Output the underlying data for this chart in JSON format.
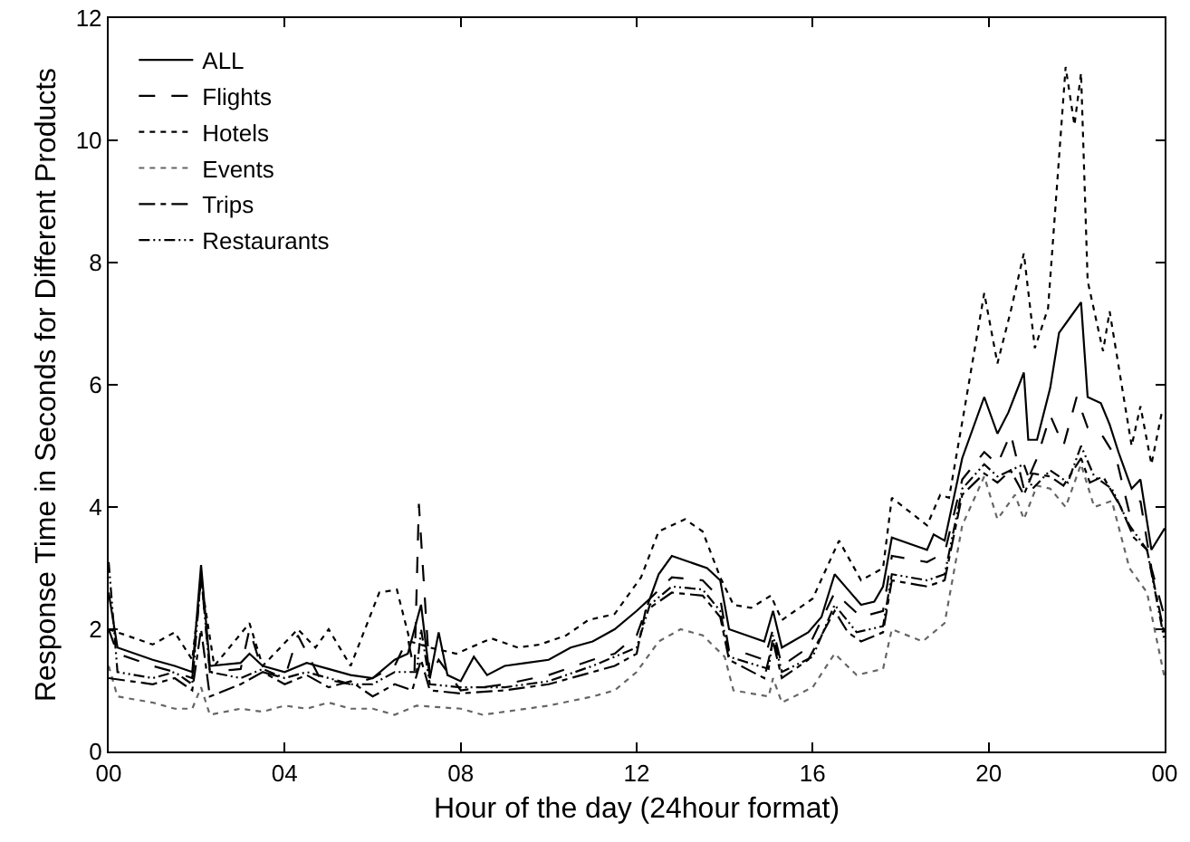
{
  "chart_data": {
    "type": "line",
    "xlabel": "Hour of the day (24hour format)",
    "ylabel": "Response Time in Seconds for Different Products",
    "xlim": [
      0,
      24
    ],
    "xticks": [
      {
        "value": 0,
        "label": "00"
      },
      {
        "value": 4,
        "label": "04"
      },
      {
        "value": 8,
        "label": "08"
      },
      12,
      16,
      20,
      {
        "value": 24,
        "label": "00"
      }
    ],
    "ylim": [
      0,
      12
    ],
    "yticks": [
      0,
      2,
      4,
      6,
      8,
      10,
      12
    ],
    "grid": false,
    "legend": "top left",
    "marker": "none",
    "series": [
      {
        "name": "ALL",
        "color": "#000000",
        "line_style": "solid",
        "x": [
          0,
          0.2,
          1,
          1.5,
          1.9,
          2.1,
          2.3,
          3,
          3.2,
          3.5,
          4,
          4.5,
          5,
          5.5,
          6,
          6.5,
          6.8,
          7.1,
          7.3,
          7.5,
          7.7,
          8,
          8.3,
          8.6,
          9,
          9.5,
          10,
          10.5,
          11,
          11.5,
          12,
          12.3,
          12.5,
          12.8,
          13.2,
          13.6,
          13.9,
          14.1,
          14.5,
          14.9,
          15.1,
          15.3,
          15.9,
          16.2,
          16.5,
          16.8,
          17.1,
          17.4,
          17.6,
          17.8,
          18.6,
          18.75,
          19,
          19.4,
          19.9,
          20.2,
          20.45,
          20.8,
          20.9,
          21.1,
          21.4,
          21.6,
          21.85,
          22.1,
          22.25,
          22.55,
          22.75,
          22.95,
          23.25,
          23.45,
          23.7,
          24
        ],
        "values": [
          2.6,
          1.7,
          1.5,
          1.4,
          1.3,
          3.05,
          1.4,
          1.45,
          1.6,
          1.4,
          1.3,
          1.45,
          1.35,
          1.25,
          1.2,
          1.5,
          1.6,
          2.4,
          1.2,
          1.95,
          1.25,
          1.15,
          1.55,
          1.25,
          1.4,
          1.45,
          1.5,
          1.7,
          1.8,
          2.0,
          2.3,
          2.5,
          2.9,
          3.2,
          3.1,
          3.0,
          2.8,
          2.0,
          1.9,
          1.8,
          2.3,
          1.7,
          1.95,
          2.2,
          2.9,
          2.65,
          2.4,
          2.45,
          2.7,
          3.5,
          3.3,
          3.55,
          3.45,
          4.8,
          5.8,
          5.2,
          5.55,
          6.2,
          5.1,
          5.1,
          5.95,
          6.85,
          7.1,
          7.35,
          5.8,
          5.7,
          5.35,
          4.9,
          4.3,
          4.45,
          3.3,
          3.65
        ]
      },
      {
        "name": "Flights",
        "color": "#000000",
        "line_style": "dashed",
        "x": [
          0,
          0.2,
          1,
          1.5,
          1.9,
          2.1,
          2.3,
          3,
          3.2,
          3.5,
          4,
          4.3,
          4.8,
          5.5,
          6,
          6.5,
          6.8,
          6.95,
          7.05,
          7.3,
          7.5,
          8,
          9,
          10,
          11,
          11.5,
          12,
          12.3,
          12.8,
          13.5,
          13.9,
          14.1,
          14.5,
          14.9,
          15.1,
          15.3,
          15.9,
          16.5,
          17.1,
          17.6,
          17.8,
          18.6,
          19,
          19.4,
          19.9,
          20.2,
          20.5,
          20.8,
          21.1,
          21.4,
          21.7,
          22.0,
          22.25,
          22.6,
          22.9,
          23.2,
          23.45,
          23.7,
          24
        ],
        "values": [
          2.0,
          1.6,
          1.4,
          1.3,
          1.2,
          2.9,
          1.3,
          1.35,
          2.0,
          1.3,
          1.2,
          1.9,
          1.2,
          1.1,
          1.2,
          1.4,
          1.85,
          1.3,
          4.05,
          1.2,
          1.5,
          1.0,
          1.1,
          1.25,
          1.5,
          1.6,
          1.9,
          2.5,
          2.85,
          2.8,
          2.5,
          1.65,
          1.6,
          1.5,
          2.0,
          1.4,
          1.7,
          2.6,
          2.2,
          2.3,
          3.2,
          3.1,
          3.25,
          4.45,
          4.9,
          4.7,
          5.2,
          4.3,
          4.8,
          5.5,
          5.0,
          5.8,
          5.3,
          5.15,
          4.8,
          3.9,
          4.1,
          3.0,
          2.2
        ]
      },
      {
        "name": "Hotels",
        "color": "#000000",
        "line_style": "dotted",
        "x": [
          0,
          1,
          1.5,
          1.9,
          2.1,
          2.4,
          3.2,
          3.5,
          4.3,
          4.7,
          5.0,
          5.5,
          6.15,
          6.55,
          6.85,
          7.3,
          7.9,
          8.7,
          9.3,
          9.8,
          10.4,
          10.9,
          11.5,
          12.1,
          12.5,
          13.1,
          13.5,
          13.9,
          14.2,
          14.6,
          15.05,
          15.3,
          16,
          16.6,
          17.1,
          17.6,
          17.8,
          18.6,
          18.9,
          19.1,
          19.45,
          19.9,
          20.2,
          20.5,
          20.8,
          21.05,
          21.35,
          21.75,
          21.95,
          22.1,
          22.25,
          22.6,
          22.75,
          23.25,
          23.45,
          23.7,
          23.95
        ],
        "values": [
          2.0,
          1.75,
          1.95,
          1.5,
          2.8,
          1.4,
          2.1,
          1.4,
          2.0,
          1.7,
          2.0,
          1.4,
          2.6,
          2.65,
          1.8,
          1.7,
          1.6,
          1.85,
          1.7,
          1.75,
          1.9,
          2.15,
          2.25,
          2.85,
          3.6,
          3.8,
          3.6,
          2.85,
          2.4,
          2.35,
          2.55,
          2.15,
          2.5,
          3.45,
          2.8,
          3.0,
          4.15,
          3.7,
          4.2,
          4.15,
          5.6,
          7.5,
          6.35,
          7.2,
          8.15,
          6.6,
          7.25,
          11.2,
          10.25,
          11.1,
          7.7,
          6.55,
          7.2,
          5.0,
          5.65,
          4.7,
          5.6
        ]
      },
      {
        "name": "Events",
        "color": "#666666",
        "line_style": "dotted",
        "x": [
          0,
          0.2,
          1,
          1.5,
          1.9,
          2.1,
          2.3,
          3,
          3.5,
          4,
          4.5,
          5,
          5.5,
          6,
          6.5,
          7,
          8,
          8.5,
          9,
          10,
          11,
          11.5,
          12,
          12.5,
          13,
          13.5,
          14,
          14.2,
          15,
          15.1,
          15.3,
          16,
          16.5,
          17,
          17.6,
          17.8,
          18.5,
          19,
          19.4,
          19.9,
          20.2,
          20.6,
          20.8,
          21.1,
          21.4,
          21.75,
          22.1,
          22.4,
          22.8,
          23.2,
          23.6,
          24
        ],
        "values": [
          1.4,
          0.9,
          0.8,
          0.7,
          0.7,
          1.05,
          0.6,
          0.7,
          0.65,
          0.75,
          0.7,
          0.8,
          0.7,
          0.7,
          0.6,
          0.75,
          0.7,
          0.6,
          0.65,
          0.75,
          0.9,
          1.0,
          1.3,
          1.8,
          2.0,
          1.9,
          1.55,
          1.0,
          0.9,
          1.2,
          0.8,
          1.05,
          1.6,
          1.25,
          1.35,
          2.0,
          1.8,
          2.1,
          3.7,
          4.5,
          3.8,
          4.2,
          3.8,
          4.35,
          4.3,
          4.0,
          4.7,
          4.0,
          4.1,
          3.0,
          2.6,
          1.2
        ]
      },
      {
        "name": "Trips",
        "color": "#000000",
        "line_style": "dashdot",
        "x": [
          0,
          1,
          1.5,
          1.9,
          2.1,
          2.3,
          3,
          3.5,
          4,
          4.5,
          5,
          5.5,
          6,
          6.5,
          6.9,
          7.1,
          7.3,
          8,
          9,
          10,
          11,
          11.5,
          12,
          12.2,
          12.8,
          13.5,
          13.9,
          14.1,
          14.5,
          14.9,
          15.1,
          15.3,
          15.9,
          16.5,
          16.8,
          17.1,
          17.6,
          17.8,
          18.6,
          19,
          19.4,
          19.9,
          20.2,
          20.5,
          20.8,
          21,
          21.4,
          21.7,
          22.1,
          22.3,
          22.6,
          23,
          23.3,
          23.6,
          24
        ],
        "values": [
          1.2,
          1.1,
          1.2,
          1.0,
          2.0,
          0.9,
          1.1,
          1.3,
          1.1,
          1.25,
          1.05,
          1.15,
          0.9,
          1.1,
          1.0,
          1.5,
          1.0,
          0.95,
          1.0,
          1.1,
          1.3,
          1.4,
          1.6,
          2.3,
          2.6,
          2.55,
          2.2,
          1.5,
          1.35,
          1.2,
          1.8,
          1.2,
          1.5,
          2.3,
          1.95,
          1.8,
          1.95,
          2.8,
          2.7,
          2.8,
          4.2,
          4.55,
          4.4,
          4.6,
          4.2,
          4.55,
          4.5,
          4.35,
          4.8,
          4.4,
          4.5,
          4.0,
          3.5,
          3.3,
          1.9
        ]
      },
      {
        "name": "Restaurants",
        "color": "#000000",
        "line_style": "dashdotdot",
        "x": [
          0,
          0.2,
          1,
          1.5,
          1.9,
          2.1,
          2.3,
          3,
          3.5,
          4,
          4.5,
          5,
          5.5,
          6,
          6.5,
          7,
          7.1,
          7.3,
          8,
          9,
          10,
          11,
          12,
          12.3,
          12.8,
          13.5,
          13.9,
          14.1,
          15,
          15.1,
          15.3,
          16,
          16.5,
          17,
          17.6,
          17.8,
          18.6,
          19,
          19.4,
          19.9,
          20.2,
          20.8,
          21,
          21.4,
          21.8,
          22.1,
          22.4,
          22.8,
          23.2,
          23.6,
          24
        ],
        "values": [
          3.1,
          1.3,
          1.2,
          1.3,
          1.1,
          2.9,
          1.3,
          1.2,
          1.35,
          1.2,
          1.3,
          1.2,
          1.1,
          1.1,
          1.3,
          1.3,
          2.0,
          1.1,
          1.05,
          1.05,
          1.15,
          1.4,
          1.7,
          2.4,
          2.7,
          2.65,
          2.3,
          1.55,
          1.35,
          1.9,
          1.3,
          1.55,
          2.4,
          1.95,
          2.05,
          2.9,
          2.8,
          2.9,
          4.3,
          4.7,
          4.5,
          4.7,
          4.3,
          4.6,
          4.4,
          5.0,
          4.5,
          4.3,
          3.7,
          3.3,
          1.8
        ]
      }
    ]
  }
}
